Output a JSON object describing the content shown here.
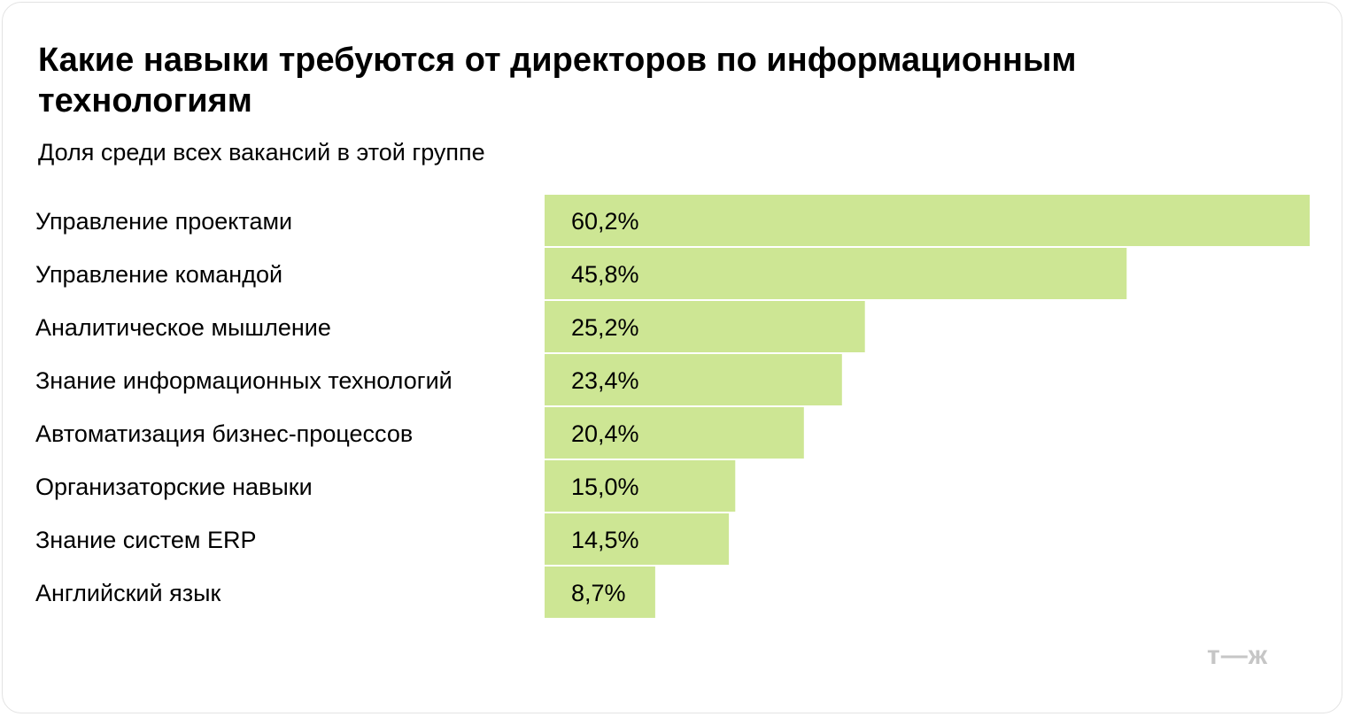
{
  "header": {
    "title": "Какие навыки требуются от директоров по информационным технологиям",
    "subtitle": "Доля среди всех вакансий в этой группе"
  },
  "logo": {
    "text": "т—ж"
  },
  "colors": {
    "bar": "#cde694",
    "text": "#000000",
    "logo": "#c6c6c6"
  },
  "chart_data": {
    "type": "bar",
    "orientation": "horizontal",
    "categories": [
      "Управление проектами",
      "Управление командой",
      "Аналитическое мышление",
      "Знание информационных технологий",
      "Автоматизация бизнес-процессов",
      "Организаторские навыки",
      "Знание систем ERP",
      "Английский язык"
    ],
    "values": [
      60.2,
      45.8,
      25.2,
      23.4,
      20.4,
      15.0,
      14.5,
      8.7
    ],
    "value_labels": [
      "60,2%",
      "45,8%",
      "25,2%",
      "23,4%",
      "20,4%",
      "15,0%",
      "14,5%",
      "8,7%"
    ],
    "unit": "%",
    "xlim": [
      0,
      60.2
    ],
    "grid": false,
    "legend": "none"
  }
}
